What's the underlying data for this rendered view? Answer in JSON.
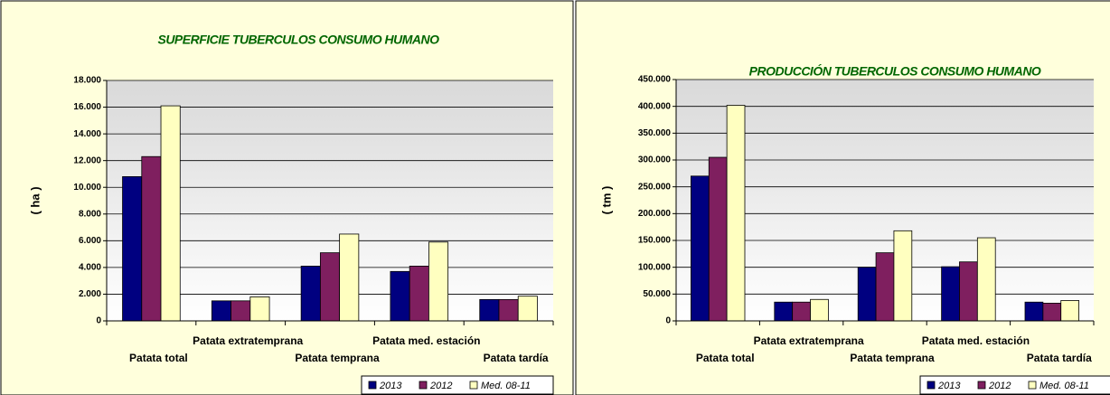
{
  "chart_data": [
    {
      "type": "bar",
      "title": "SUPERFICIE TUBERCULOS CONSUMO HUMANO",
      "y_label": "( ha )",
      "categories": [
        "Patata total",
        "Patata extratemprana",
        "Patata temprana",
        "Patata med. estación",
        "Patata tardía"
      ],
      "series": [
        {
          "name": "2013",
          "color": "#000080",
          "values": [
            10800,
            1500,
            4100,
            3700,
            1600
          ]
        },
        {
          "name": "2012",
          "color": "#7f1f5f",
          "values": [
            12300,
            1500,
            5100,
            4100,
            1600
          ]
        },
        {
          "name": "Med. 08-11",
          "color": "#ffffc0",
          "values": [
            16100,
            1800,
            6500,
            5900,
            1850
          ]
        }
      ],
      "ylim": [
        0,
        18000
      ],
      "yticks": [
        0,
        {
          "value": 2000,
          "label": "2.000"
        },
        {
          "value": 4000,
          "label": "4.000"
        },
        {
          "value": 6000,
          "label": "6.000"
        },
        {
          "value": 8000,
          "label": "8.000"
        },
        {
          "value": 10000,
          "label": "10.000"
        },
        {
          "value": 12000,
          "label": "12.000"
        },
        {
          "value": 14000,
          "label": "14.000"
        },
        {
          "value": 16000,
          "label": "16.000"
        },
        {
          "value": 18000,
          "label": "18.000"
        }
      ],
      "grid": true,
      "legend": "bottom-right"
    },
    {
      "type": "bar",
      "title": "PRODUCCIÓN TUBERCULOS CONSUMO HUMANO",
      "y_label": "( tm )",
      "categories": [
        "Patata total",
        "Patata extratemprana",
        "Patata temprana",
        "Patata med. estación",
        "Patata tardía"
      ],
      "series": [
        {
          "name": "2013",
          "color": "#000080",
          "values": [
            270000,
            35000,
            100000,
            101000,
            35000
          ]
        },
        {
          "name": "2012",
          "color": "#7f1f5f",
          "values": [
            305000,
            35000,
            127000,
            110000,
            33000
          ]
        },
        {
          "name": "Med. 08-11",
          "color": "#ffffc0",
          "values": [
            402000,
            40000,
            168000,
            155000,
            38000
          ]
        }
      ],
      "ylim": [
        0,
        450000
      ],
      "yticks": [
        0,
        {
          "value": 50000,
          "label": "50.000"
        },
        {
          "value": 100000,
          "label": "100.000"
        },
        {
          "value": 150000,
          "label": "150.000"
        },
        {
          "value": 200000,
          "label": "200.000"
        },
        {
          "value": 250000,
          "label": "250.000"
        },
        {
          "value": 300000,
          "label": "300.000"
        },
        {
          "value": 350000,
          "label": "350.000"
        },
        {
          "value": 400000,
          "label": "400.000"
        },
        {
          "value": 450000,
          "label": "450.000"
        }
      ],
      "grid": true,
      "legend": "bottom-right"
    }
  ]
}
